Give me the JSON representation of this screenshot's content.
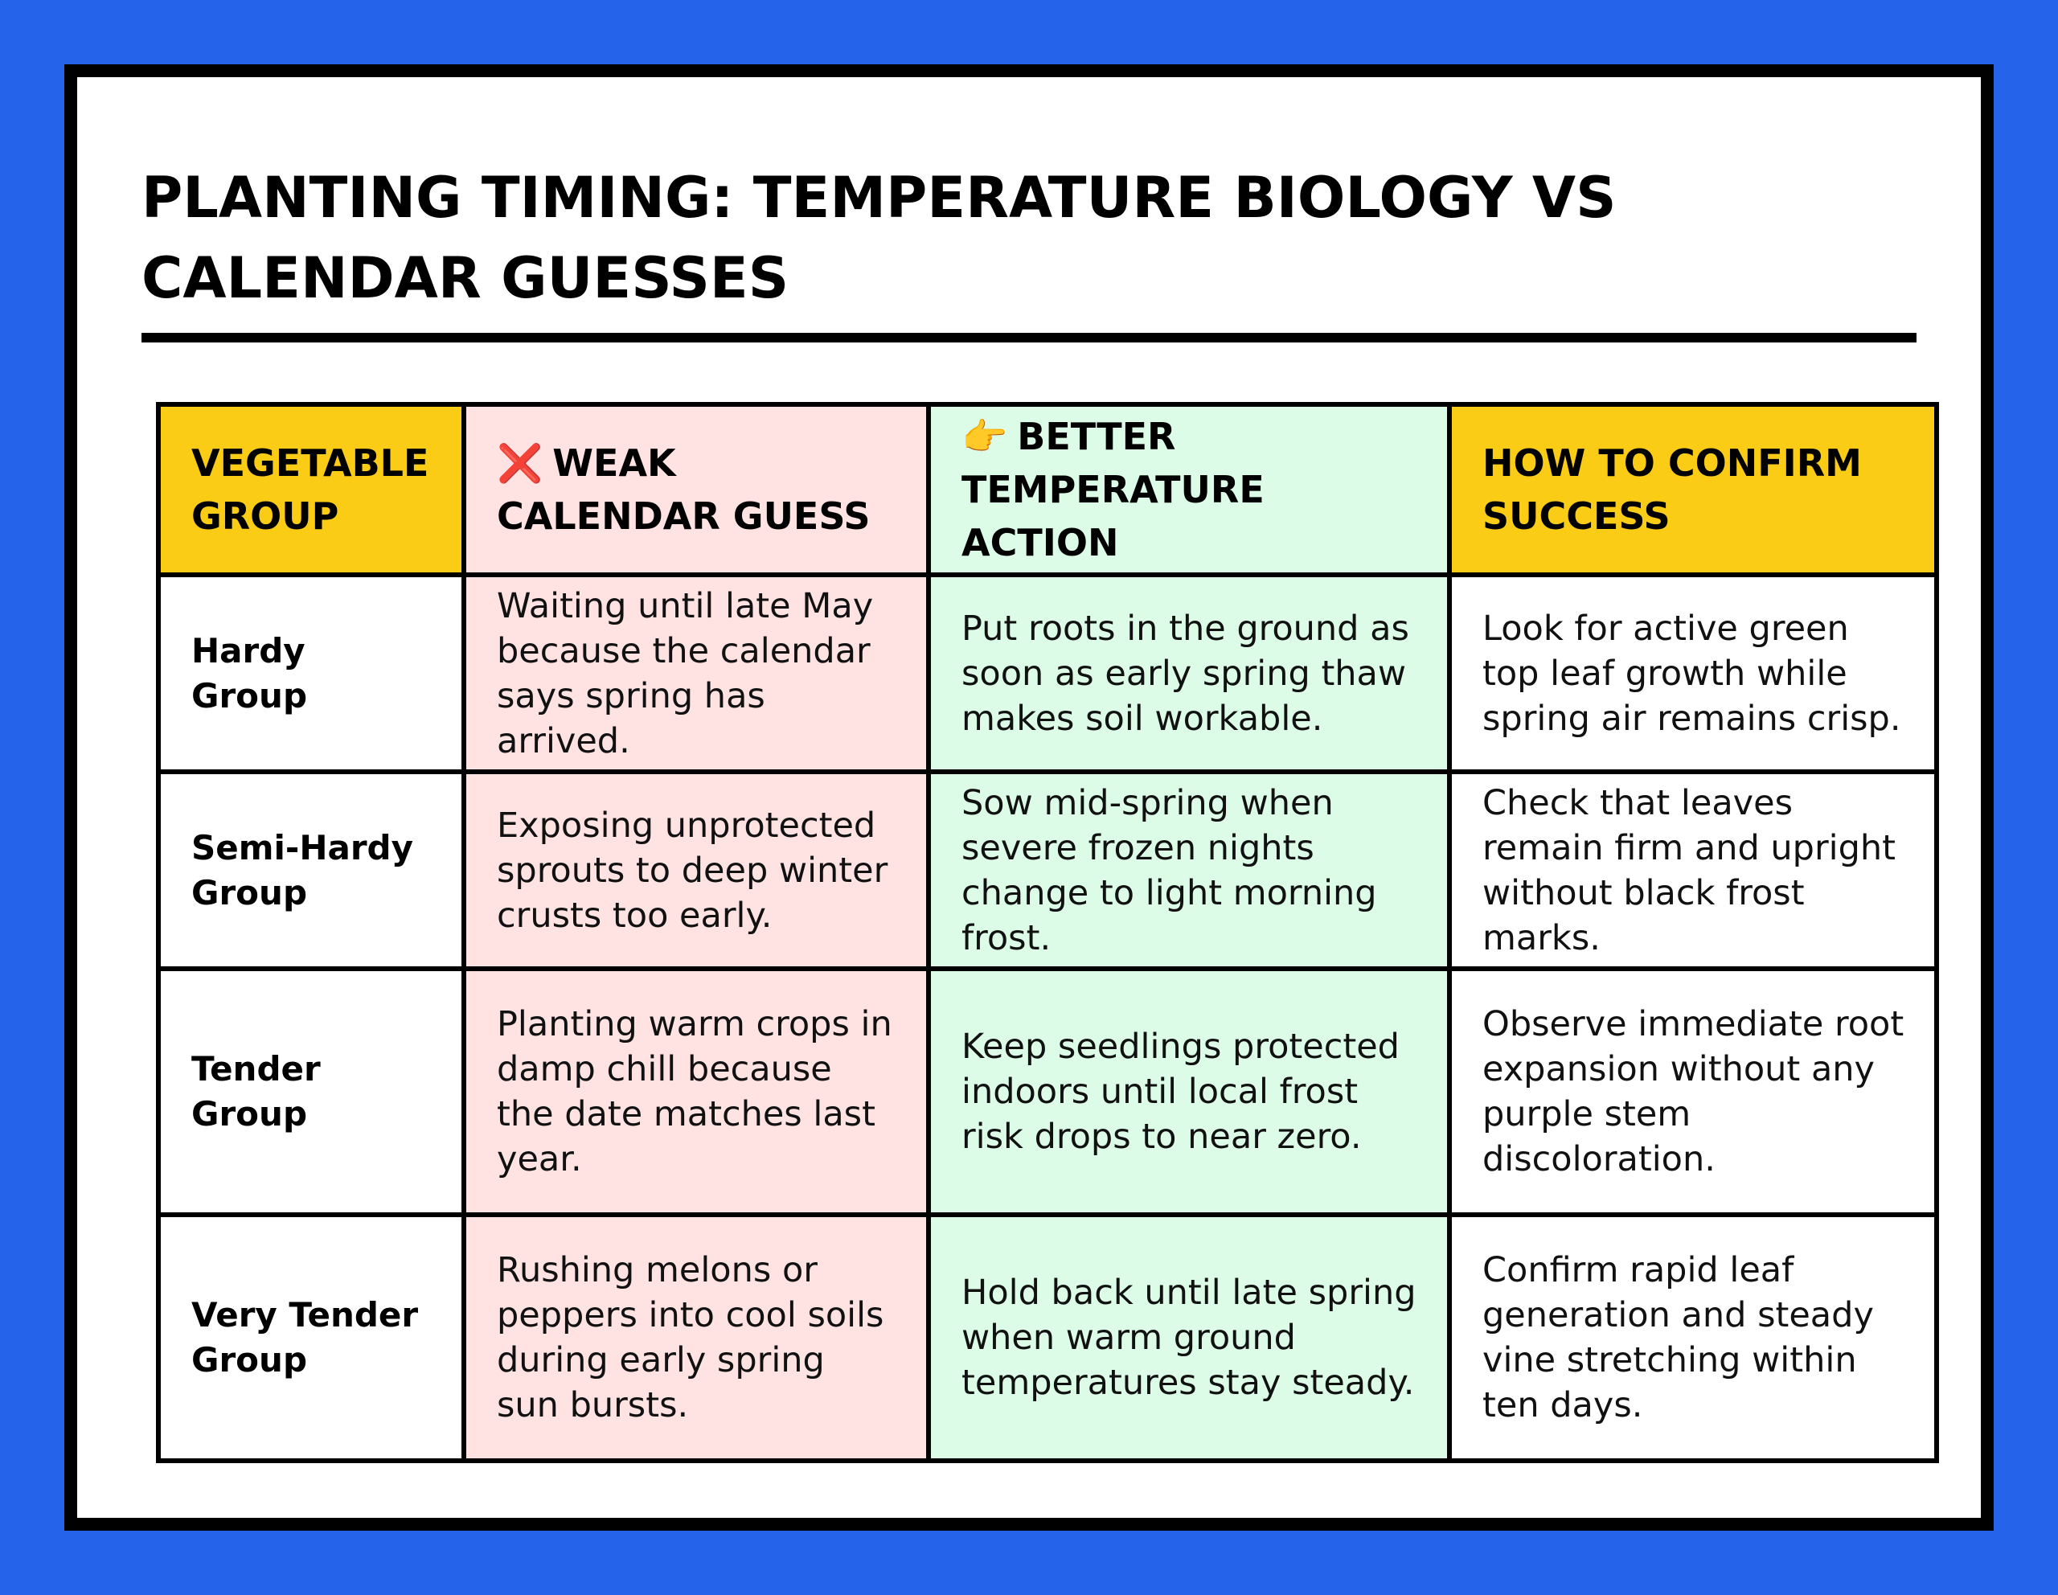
{
  "title": "PLANTING TIMING: TEMPERATURE BIOLOGY VS CALENDAR GUESSES",
  "colors": {
    "background": "#2563eb",
    "header_yellow": "#facc15",
    "weak_column": "#ffe2e2",
    "better_column": "#dcfce7"
  },
  "table": {
    "headers": {
      "group": "VEGETABLE GROUP",
      "weak_icon": "❌",
      "weak": "WEAK CALENDAR GUESS",
      "better_icon": "👉",
      "better": "BETTER TEMPERATURE ACTION",
      "confirm": "HOW TO CONFIRM SUCCESS"
    },
    "rows": [
      {
        "group": "Hardy Group",
        "weak": "Waiting until late May because the calendar says spring has arrived.",
        "better": "Put roots in the ground as soon as early spring thaw makes soil workable.",
        "confirm": "Look for active green top leaf growth while spring air remains crisp."
      },
      {
        "group": "Semi-Hardy Group",
        "weak": "Exposing unprotected sprouts to deep winter crusts too early.",
        "better": "Sow mid-spring when severe frozen nights change to light morning frost.",
        "confirm": "Check that leaves remain firm and upright without black frost marks."
      },
      {
        "group": "Tender Group",
        "weak": "Planting warm crops in damp chill because the date matches last year.",
        "better": "Keep seedlings protected indoors until local frost risk drops to near zero.",
        "confirm": "Observe immediate root expansion without any purple stem discoloration."
      },
      {
        "group": "Very Tender Group",
        "weak": "Rushing melons or peppers into cool soils during early spring sun bursts.",
        "better": "Hold back until late spring when warm ground temperatures stay steady.",
        "confirm": "Confirm rapid leaf generation and steady vine stretching within ten days."
      }
    ]
  }
}
